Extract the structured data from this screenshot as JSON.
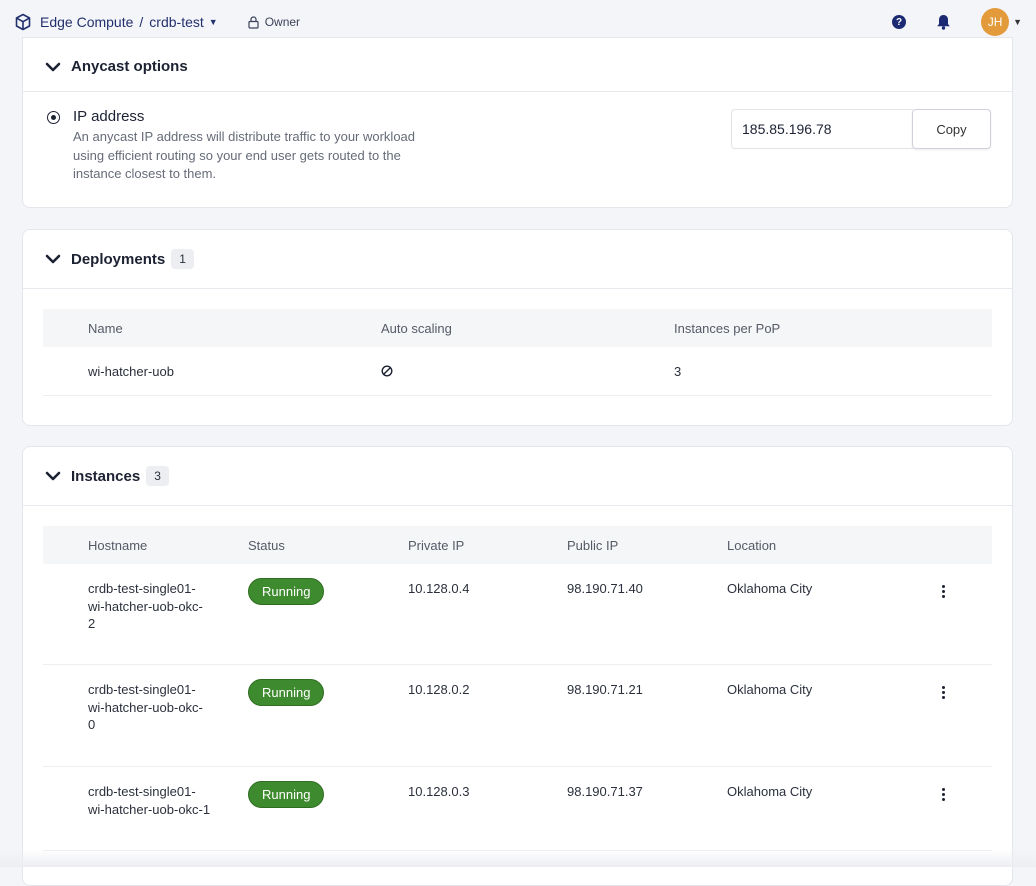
{
  "header": {
    "product": "Edge Compute",
    "separator": "/",
    "project": "crdb-test",
    "role": "Owner",
    "help_glyph": "?",
    "avatar_initials": "JH",
    "avatar_color": "#e39a3b"
  },
  "anycast": {
    "title": "Anycast options",
    "ip_title": "IP address",
    "ip_description": "An anycast IP address will distribute traffic to your workload using efficient routing so your end user gets routed to the instance closest to them.",
    "ip_value": "185.85.196.78",
    "copy_label": "Copy"
  },
  "deployments": {
    "title": "Deployments",
    "count": "1",
    "columns": [
      "Name",
      "Auto scaling",
      "Instances per PoP"
    ],
    "rows": [
      {
        "name": "wi-hatcher-uob",
        "auto_scaling_icon": "disabled-icon",
        "instances_per_pop": "3"
      }
    ]
  },
  "instances": {
    "title": "Instances",
    "count": "3",
    "columns": [
      "Hostname",
      "Status",
      "Private IP",
      "Public IP",
      "Location"
    ],
    "status_color": "#3e8a2e",
    "rows": [
      {
        "hostname_lines": [
          "crdb-test-single01-",
          "wi-hatcher-uob-okc-",
          "2"
        ],
        "status": "Running",
        "private_ip": "10.128.0.4",
        "public_ip": "98.190.71.40",
        "location": "Oklahoma City"
      },
      {
        "hostname_lines": [
          "crdb-test-single01-",
          "wi-hatcher-uob-okc-",
          "0"
        ],
        "status": "Running",
        "private_ip": "10.128.0.2",
        "public_ip": "98.190.71.21",
        "location": "Oklahoma City"
      },
      {
        "hostname_lines": [
          "crdb-test-single01-",
          "wi-hatcher-uob-okc-1"
        ],
        "status": "Running",
        "private_ip": "10.128.0.3",
        "public_ip": "98.190.71.37",
        "location": "Oklahoma City"
      }
    ]
  }
}
